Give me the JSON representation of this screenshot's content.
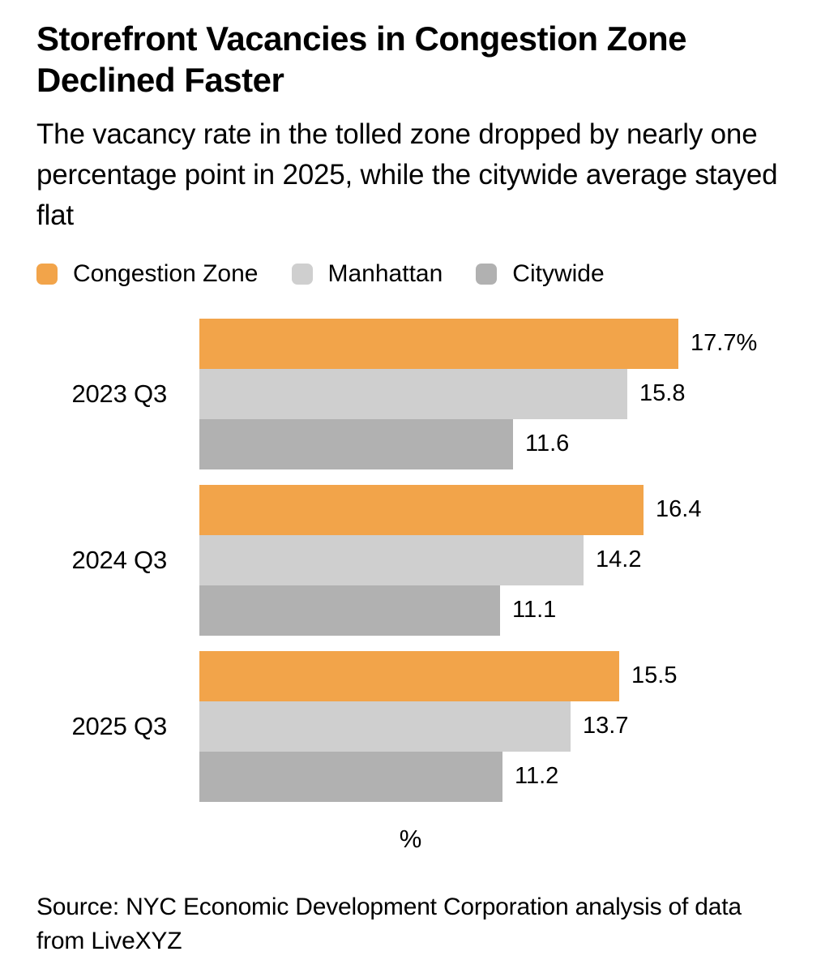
{
  "header": {
    "title": "Storefront Vacancies in Congestion Zone Declined Faster",
    "subtitle": "The vacancy rate in the tolled zone dropped by nearly one percentage point in 2025, while the citywide average stayed flat"
  },
  "legend": {
    "items": [
      {
        "label": "Congestion Zone",
        "color": "#F2A44A"
      },
      {
        "label": "Manhattan",
        "color": "#CFCFCF"
      },
      {
        "label": "Citywide",
        "color": "#B1B1B1"
      }
    ]
  },
  "chart_data": {
    "type": "bar",
    "orientation": "horizontal",
    "title": "Storefront Vacancies in Congestion Zone Declined Faster",
    "xlabel": "%",
    "ylabel": "",
    "xlim": [
      0,
      18.5
    ],
    "grid": false,
    "legend_position": "top",
    "categories": [
      "2023 Q3",
      "2024 Q3",
      "2025 Q3"
    ],
    "series": [
      {
        "name": "Congestion Zone",
        "color": "#F2A44A",
        "values": [
          17.7,
          16.4,
          15.5
        ]
      },
      {
        "name": "Manhattan",
        "color": "#CFCFCF",
        "values": [
          15.8,
          14.2,
          13.7
        ]
      },
      {
        "name": "Citywide",
        "color": "#B1B1B1",
        "values": [
          11.6,
          11.1,
          11.2
        ]
      }
    ],
    "value_labels": [
      [
        "17.7%",
        "15.8",
        "11.6"
      ],
      [
        "16.4",
        "14.2",
        "11.1"
      ],
      [
        "15.5",
        "13.7",
        "11.2"
      ]
    ]
  },
  "footer": {
    "source": "Source: NYC Economic Development Corporation analysis of data from LiveXYZ"
  }
}
